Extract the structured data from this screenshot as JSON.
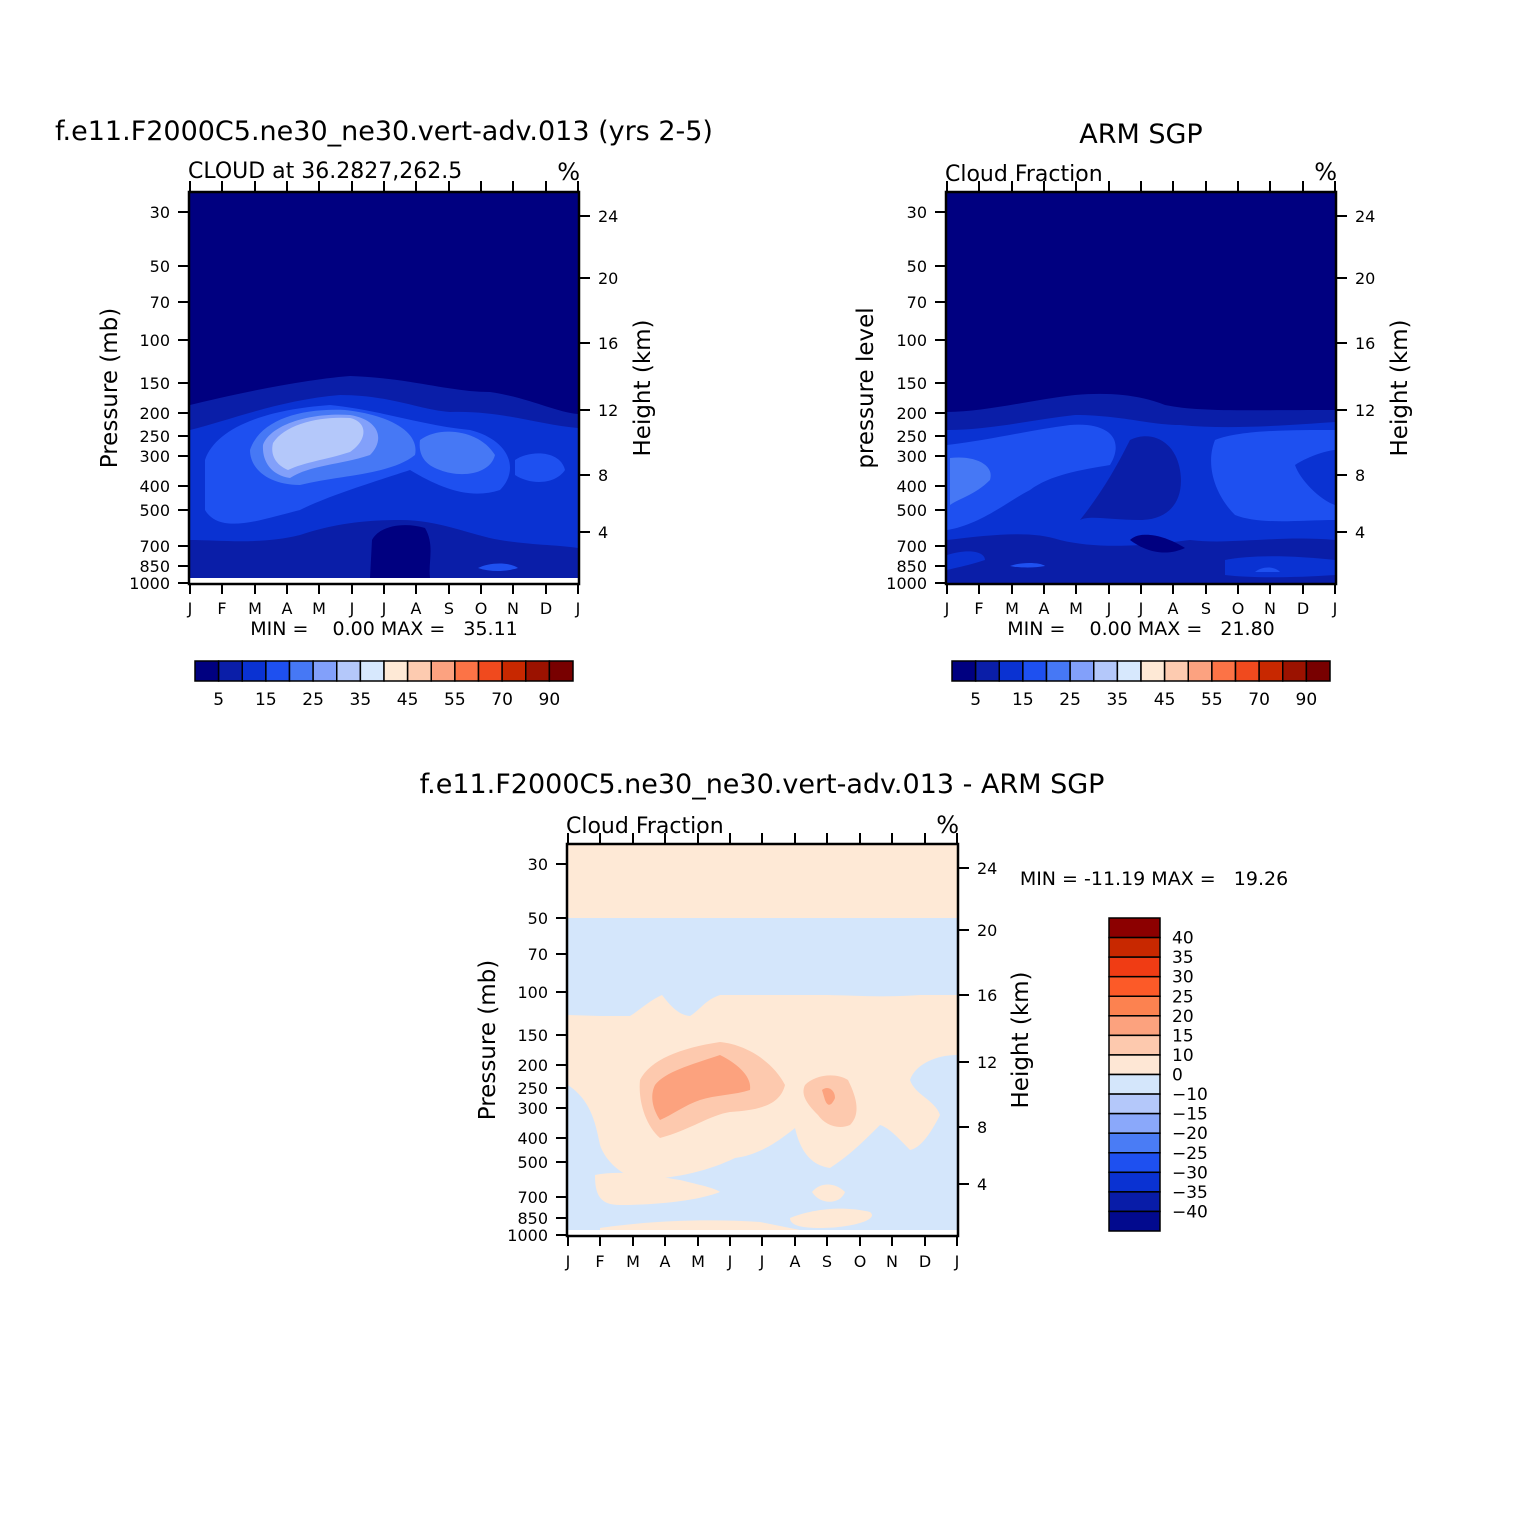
{
  "panels": [
    {
      "id": "model",
      "title": "f.e11.F2000C5.ne30_ne30.vert-adv.013 (yrs 2-5)",
      "subtitle_left": "CLOUD at 36.2827,262.5",
      "subtitle_right": "%",
      "ylabel_left": "Pressure (mb)",
      "ylabel_right": "Height (km)",
      "minmax": "MIN =    0.00 MAX =   35.11"
    },
    {
      "id": "obs",
      "title": "ARM SGP",
      "subtitle_left": "Cloud Fraction",
      "subtitle_right": "%",
      "ylabel_left": "pressure level",
      "ylabel_right": "Height (km)",
      "minmax": "MIN =    0.00 MAX =   21.80"
    },
    {
      "id": "diff",
      "title": "f.e11.F2000C5.ne30_ne30.vert-adv.013 - ARM SGP",
      "subtitle_left": "Cloud Fraction",
      "subtitle_right": "%",
      "ylabel_left": "Pressure (mb)",
      "ylabel_right": "Height (km)",
      "minmax": "MIN = -11.19 MAX =   19.26"
    }
  ],
  "colorbar_main": {
    "colors": [
      "#000080",
      "#0a1ea8",
      "#0a32d2",
      "#1e50f0",
      "#4678f5",
      "#82a0fa",
      "#b4c8fa",
      "#d7e8fd",
      "#fee9d6",
      "#fdcbb0",
      "#fca280",
      "#fc7346",
      "#f04a1e",
      "#c82800",
      "#9b1200",
      "#780000"
    ],
    "labels": [
      "5",
      "15",
      "25",
      "35",
      "45",
      "55",
      "70",
      "90"
    ]
  },
  "colorbar_diff": {
    "colors": [
      "#8c0000",
      "#c82800",
      "#f03c14",
      "#fc5a28",
      "#fc8250",
      "#fca27e",
      "#fdc9ae",
      "#fee7d5",
      "#d4e6fb",
      "#b4c8fa",
      "#8aa8fa",
      "#4a7cf5",
      "#1e50f0",
      "#0a32d2",
      "#081ca8",
      "#020a8e"
    ],
    "labels": [
      "40",
      "35",
      "30",
      "25",
      "20",
      "15",
      "10",
      "0",
      "-10",
      "-15",
      "-20",
      "-25",
      "-30",
      "-35",
      "-40"
    ]
  },
  "chart_data": [
    {
      "type": "heatmap",
      "title": "f.e11.F2000C5.ne30_ne30.vert-adv.013 (yrs 2-5)",
      "subtitle": "CLOUD at 36.2827,262.5",
      "units": "%",
      "x": [
        "J",
        "F",
        "M",
        "A",
        "M",
        "J",
        "J",
        "A",
        "S",
        "O",
        "N",
        "D",
        "J"
      ],
      "y_pressure_ticks": [
        30,
        50,
        70,
        100,
        150,
        200,
        250,
        300,
        400,
        500,
        700,
        850,
        1000
      ],
      "y_height_ticks": [
        4,
        8,
        12,
        16,
        20,
        24
      ],
      "xlabel": "",
      "ylabel": "Pressure (mb)",
      "ylabel_right": "Height (km)",
      "min": 0.0,
      "max": 35.11,
      "contour_levels": [
        5,
        10,
        15,
        20,
        25,
        30,
        35,
        40,
        45,
        50,
        55,
        60,
        70,
        80,
        90
      ],
      "colormap": "blue-to-red"
    },
    {
      "type": "heatmap",
      "title": "ARM SGP",
      "subtitle": "Cloud Fraction",
      "units": "%",
      "x": [
        "J",
        "F",
        "M",
        "A",
        "M",
        "J",
        "J",
        "A",
        "S",
        "O",
        "N",
        "D",
        "J"
      ],
      "y_pressure_ticks": [
        30,
        50,
        70,
        100,
        150,
        200,
        250,
        300,
        400,
        500,
        700,
        850,
        1000
      ],
      "y_height_ticks": [
        4,
        8,
        12,
        16,
        20,
        24
      ],
      "xlabel": "",
      "ylabel": "pressure level",
      "ylabel_right": "Height (km)",
      "min": 0.0,
      "max": 21.8,
      "contour_levels": [
        5,
        10,
        15,
        20,
        25,
        30,
        35,
        40,
        45,
        50,
        55,
        60,
        70,
        80,
        90
      ],
      "colormap": "blue-to-red"
    },
    {
      "type": "heatmap",
      "title": "f.e11.F2000C5.ne30_ne30.vert-adv.013 - ARM SGP",
      "subtitle": "Cloud Fraction",
      "units": "%",
      "x": [
        "J",
        "F",
        "M",
        "A",
        "M",
        "J",
        "J",
        "A",
        "S",
        "O",
        "N",
        "D",
        "J"
      ],
      "y_pressure_ticks": [
        30,
        50,
        70,
        100,
        150,
        200,
        250,
        300,
        400,
        500,
        700,
        850,
        1000
      ],
      "y_height_ticks": [
        4,
        8,
        12,
        16,
        20,
        24
      ],
      "xlabel": "",
      "ylabel": "Pressure (mb)",
      "ylabel_right": "Height (km)",
      "min": -11.19,
      "max": 19.26,
      "contour_levels": [
        -40,
        -35,
        -30,
        -25,
        -20,
        -15,
        -10,
        0,
        10,
        15,
        20,
        25,
        30,
        35,
        40
      ],
      "colormap": "diverging blue-red"
    }
  ]
}
